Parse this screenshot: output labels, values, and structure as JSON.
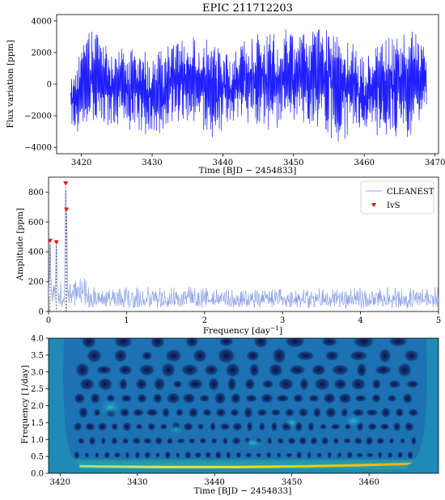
{
  "title": "EPIC 211712203",
  "colors": {
    "lightcurve": "#1f1fff",
    "periodogram": "#8ea4e8",
    "markers": "#ff0000",
    "heatmap_background": "#1e8ab5",
    "heatmap_dark": "#0b0b3c",
    "heatmap_ridge": "#ffd400"
  },
  "chart_data": [
    {
      "type": "line",
      "name": "light-curve",
      "xlabel": "Time [BJD − 2454833]",
      "ylabel": "Flux variation [ppm]",
      "xlim": [
        3416.5,
        3470.5
      ],
      "ylim": [
        -4400,
        4400
      ],
      "xticks": [
        3420,
        3430,
        3440,
        3450,
        3460,
        3470
      ],
      "yticks": [
        -4000,
        -2000,
        0,
        2000,
        4000
      ],
      "x_range": [
        3418.5,
        3468.8
      ],
      "envelope": {
        "x": [
          3418.5,
          3421,
          3424,
          3427,
          3430,
          3433,
          3436,
          3440,
          3444,
          3448,
          3452,
          3456,
          3460,
          3464,
          3467,
          3468.8
        ],
        "upper": [
          800,
          3800,
          2500,
          2800,
          2000,
          3200,
          3400,
          3000,
          3400,
          3600,
          3800,
          3600,
          2000,
          3600,
          3400,
          2800
        ],
        "lower": [
          -3200,
          -3000,
          -2600,
          -3000,
          -3600,
          -2600,
          -3200,
          -3500,
          -2600,
          -3200,
          -2800,
          -3800,
          -3200,
          -3900,
          -3400,
          -1800
        ]
      }
    },
    {
      "type": "line",
      "name": "periodogram",
      "xlabel": "Frequency [day$^{-1}$]",
      "ylabel": "Amplitude [ppm]",
      "xlim": [
        0,
        5
      ],
      "ylim": [
        0,
        900
      ],
      "xticks": [
        0,
        1,
        2,
        3,
        4,
        5
      ],
      "yticks": [
        0,
        200,
        400,
        600,
        800
      ],
      "legend": [
        "CLEANEST",
        "IvS"
      ],
      "legend_position": "top-right",
      "peaks": [
        {
          "x": 0.02,
          "y": 470
        },
        {
          "x": 0.1,
          "y": 460
        },
        {
          "x": 0.22,
          "y": 855
        },
        {
          "x": 0.23,
          "y": 680
        }
      ],
      "noise_level": 90
    },
    {
      "type": "heatmap",
      "name": "wavelet-spectrum",
      "xlabel": "Time [BJD − 2454833]",
      "ylabel": "Frequency [1/day]",
      "xlim": [
        3418.5,
        3469
      ],
      "ylim": [
        0.0,
        4.0
      ],
      "xticks": [
        3420,
        3430,
        3440,
        3450,
        3460
      ],
      "yticks": [
        0.0,
        0.5,
        1.0,
        1.5,
        2.0,
        2.5,
        3.0,
        3.5,
        4.0
      ],
      "ridge_frequency": 0.22
    }
  ]
}
